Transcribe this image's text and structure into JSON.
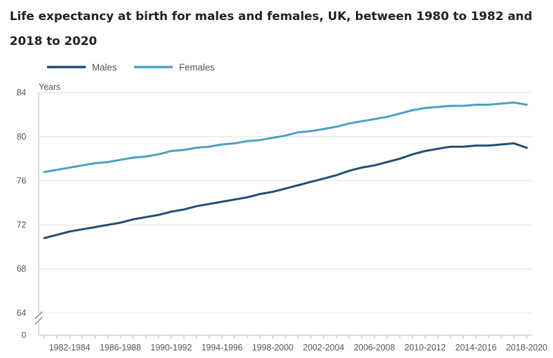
{
  "chart_data": {
    "type": "line",
    "title": "Life expectancy at birth for males and females, UK, between 1980 to 1982 and 2018 to 2020",
    "ylabel": "Years",
    "xlabel": "",
    "ylim": [
      64,
      84
    ],
    "y_ticks": [
      "84",
      "80",
      "76",
      "72",
      "68",
      "64",
      "0"
    ],
    "y_axis_break": true,
    "grid": "horizontal",
    "legend_position": "top-left",
    "x": [
      "1980-1982",
      "1981-1983",
      "1982-1984",
      "1983-1985",
      "1984-1986",
      "1985-1987",
      "1986-1988",
      "1987-1989",
      "1988-1990",
      "1989-1991",
      "1990-1992",
      "1991-1993",
      "1992-1994",
      "1993-1995",
      "1994-1996",
      "1995-1997",
      "1996-1998",
      "1997-1999",
      "1998-2000",
      "1999-2001",
      "2000-2002",
      "2001-2003",
      "2002-2004",
      "2003-2005",
      "2004-2006",
      "2005-2007",
      "2006-2008",
      "2007-2009",
      "2008-2010",
      "2009-2011",
      "2010-2012",
      "2011-2013",
      "2012-2014",
      "2013-2015",
      "2014-2016",
      "2015-2017",
      "2016-2018",
      "2017-2019",
      "2018-2020"
    ],
    "x_tick_labels": [
      "1982-1984",
      "1986-1988",
      "1990-1992",
      "1994-1996",
      "1998-2000",
      "2002-2004",
      "2006-2008",
      "2010-2012",
      "2014-2016",
      "2018-2020"
    ],
    "series": [
      {
        "name": "Males",
        "color": "#1f4e79",
        "values": [
          70.8,
          71.1,
          71.4,
          71.6,
          71.8,
          72.0,
          72.2,
          72.5,
          72.7,
          72.9,
          73.2,
          73.4,
          73.7,
          73.9,
          74.1,
          74.3,
          74.5,
          74.8,
          75.0,
          75.3,
          75.6,
          75.9,
          76.2,
          76.5,
          76.9,
          77.2,
          77.4,
          77.7,
          78.0,
          78.4,
          78.7,
          78.9,
          79.1,
          79.1,
          79.2,
          79.2,
          79.3,
          79.4,
          79.0
        ]
      },
      {
        "name": "Females",
        "color": "#4aa0c8",
        "values": [
          76.8,
          77.0,
          77.2,
          77.4,
          77.6,
          77.7,
          77.9,
          78.1,
          78.2,
          78.4,
          78.7,
          78.8,
          79.0,
          79.1,
          79.3,
          79.4,
          79.6,
          79.7,
          79.9,
          80.1,
          80.4,
          80.5,
          80.7,
          80.9,
          81.2,
          81.4,
          81.6,
          81.8,
          82.1,
          82.4,
          82.6,
          82.7,
          82.8,
          82.8,
          82.9,
          82.9,
          83.0,
          83.1,
          82.9
        ]
      }
    ]
  }
}
